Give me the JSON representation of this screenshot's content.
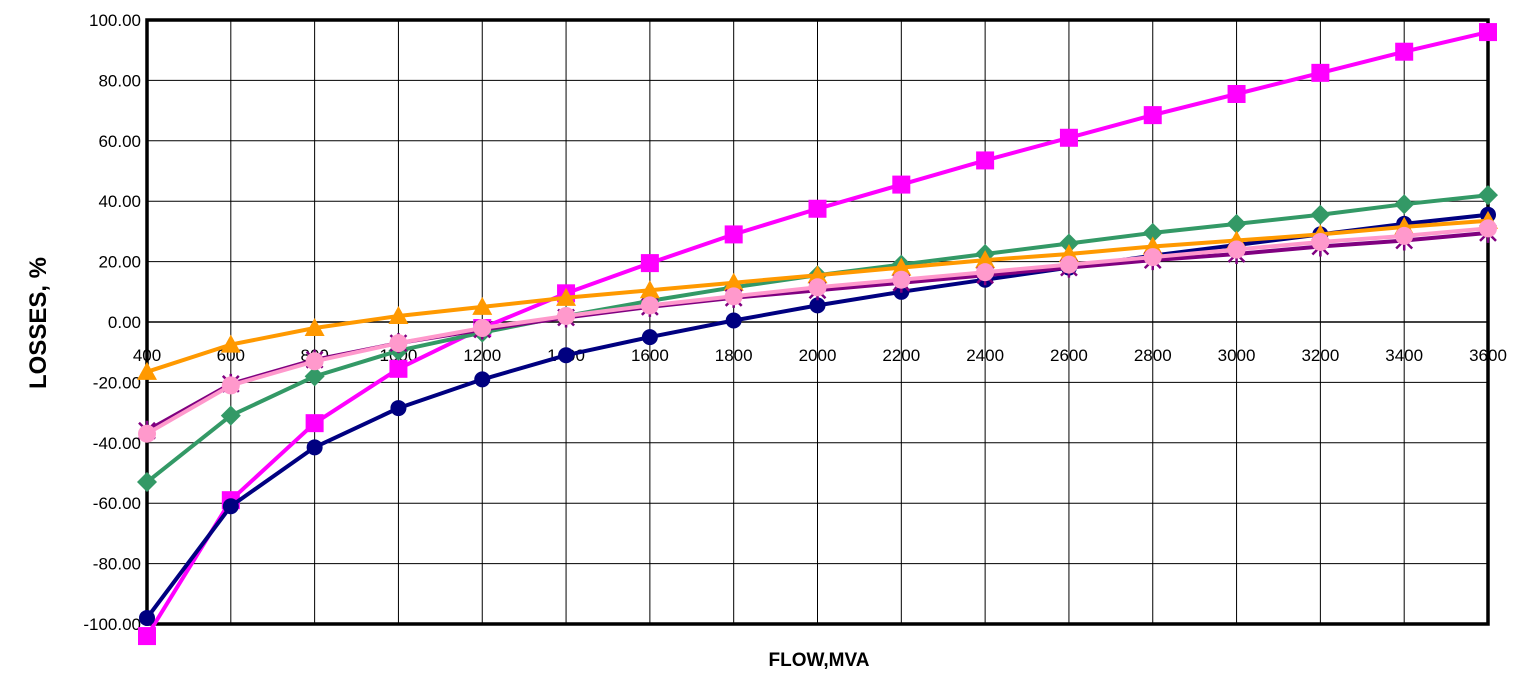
{
  "chart_data": {
    "type": "line",
    "title": "",
    "xlabel": "FLOW,MVA",
    "ylabel": "LOSSES, %",
    "x": [
      400,
      600,
      800,
      1000,
      1200,
      1400,
      1600,
      1800,
      2000,
      2200,
      2400,
      2600,
      2800,
      3000,
      3200,
      3400,
      3600
    ],
    "xlim": [
      400,
      3600
    ],
    "ylim": [
      -100,
      100
    ],
    "y_ticks": [
      "-100.00",
      "-80.00",
      "-60.00",
      "-40.00",
      "-20.00",
      "0.00",
      "20.00",
      "40.00",
      "60.00",
      "80.00",
      "100.00"
    ],
    "x_ticks": [
      "400",
      "600",
      "800",
      "1000",
      "1200",
      "1400",
      "1600",
      "1800",
      "2000",
      "2200",
      "2400",
      "2600",
      "2800",
      "3000",
      "3200",
      "3400",
      "3600"
    ],
    "grid": true,
    "legend": "none",
    "series": [
      {
        "color": "#FF00FF",
        "marker": "square",
        "values": [
          -104,
          -59,
          -33.5,
          -15.5,
          -2,
          9.5,
          19.5,
          29,
          37.5,
          45.5,
          53.5,
          61,
          68.5,
          75.5,
          82.5,
          89.5,
          96
        ]
      },
      {
        "color": "#339966",
        "marker": "diamond",
        "values": [
          -53,
          -31,
          -18,
          -9.5,
          -3.5,
          2,
          7,
          11.5,
          15.5,
          19,
          22.5,
          26,
          29.5,
          32.5,
          35.5,
          39,
          42
        ]
      },
      {
        "color": "#000080",
        "marker": "circle",
        "values": [
          -98,
          -61,
          -41.5,
          -28.5,
          -19,
          -11,
          -5,
          0.5,
          5.5,
          10,
          14,
          18,
          22,
          25.5,
          29,
          32.5,
          35.5
        ]
      },
      {
        "color": "#FF9900",
        "marker": "triangle",
        "values": [
          -16.5,
          -7.5,
          -2,
          2,
          5,
          8,
          10.5,
          13,
          15.5,
          18,
          20.5,
          22.5,
          25,
          27,
          29,
          31.5,
          33.5
        ]
      },
      {
        "color": "#800080",
        "marker": "star",
        "values": [
          -36,
          -20.5,
          -12.5,
          -7,
          -2.5,
          1.5,
          5,
          8,
          10.5,
          13,
          15.5,
          18,
          20.5,
          22.5,
          25,
          27,
          29.5
        ]
      },
      {
        "color": "#FF99CC",
        "marker": "circle",
        "values": [
          -37,
          -21,
          -13,
          -7,
          -2,
          2,
          5.5,
          8.5,
          11.5,
          14,
          16.5,
          19,
          21.5,
          24,
          26.5,
          28.5,
          31
        ]
      }
    ]
  }
}
